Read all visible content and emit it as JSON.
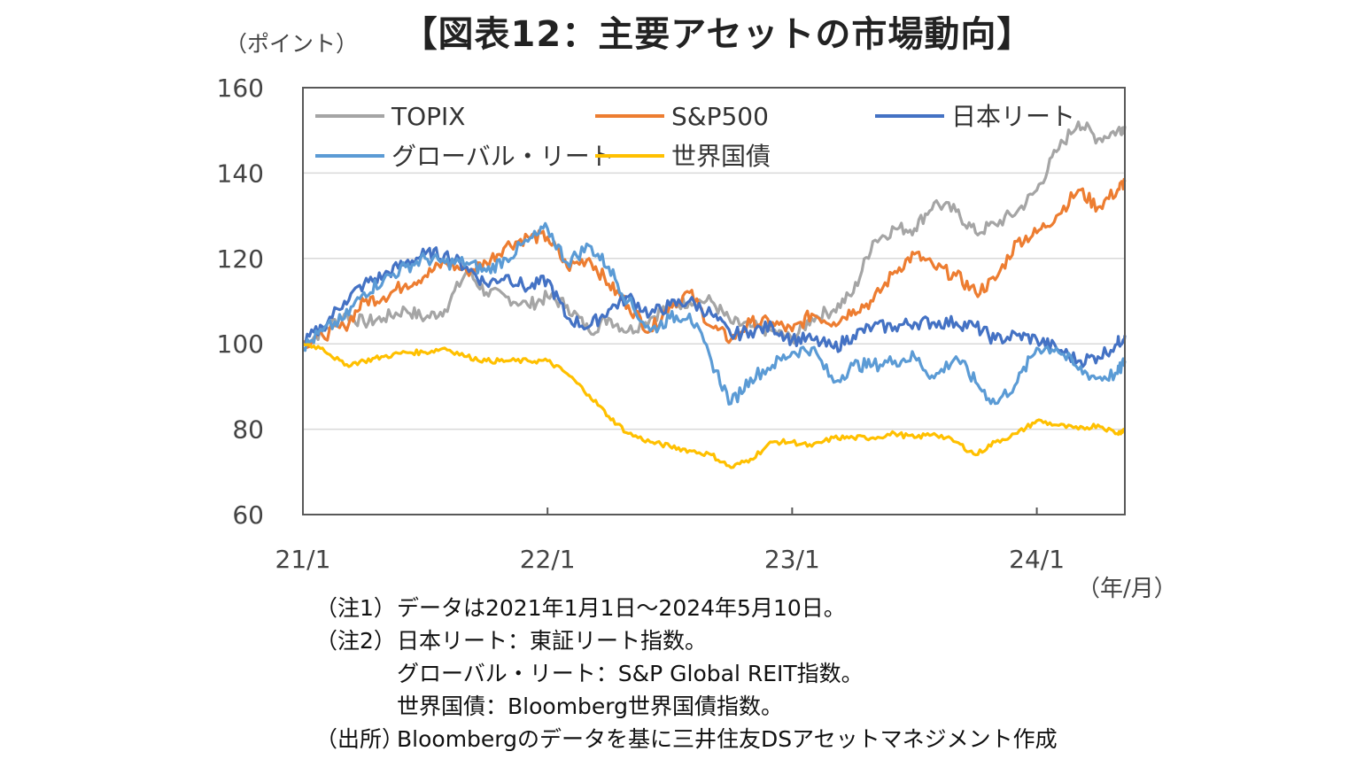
{
  "title": "【図表12：主要アセットの市場動向】",
  "y_unit": "（ポイント）",
  "x_unit": "（年/月）",
  "notes": [
    {
      "label": "（注1）",
      "text": "データは2021年1月1日～2024年5月10日。"
    },
    {
      "label": "（注2）",
      "text": "日本リート：東証リート指数。"
    },
    {
      "label": "",
      "text": "グローバル・リート：S&P Global REIT指数。"
    },
    {
      "label": "",
      "text": "世界国債：Bloomberg世界国債指数。"
    },
    {
      "label": "（出所）",
      "text": "Bloombergのデータを基に三井住友DSアセットマネジメント作成"
    }
  ],
  "chart_data": {
    "type": "line",
    "ylim": [
      60,
      160
    ],
    "yticks": [
      60,
      80,
      100,
      120,
      140,
      160
    ],
    "xlim": [
      2021.0,
      2024.36
    ],
    "xticks": [
      {
        "value": 2021.0,
        "label": "21/1"
      },
      {
        "value": 2022.0,
        "label": "22/1"
      },
      {
        "value": 2023.0,
        "label": "23/1"
      },
      {
        "value": 2024.0,
        "label": "24/1"
      }
    ],
    "grid": true,
    "legend_position": "top-left inside",
    "series": [
      {
        "name": "TOPIX",
        "color": "#a5a5a5",
        "x": [
          2021.0,
          2021.08,
          2021.17,
          2021.25,
          2021.33,
          2021.42,
          2021.5,
          2021.58,
          2021.67,
          2021.75,
          2021.83,
          2021.92,
          2022.0,
          2022.08,
          2022.17,
          2022.25,
          2022.33,
          2022.42,
          2022.5,
          2022.58,
          2022.67,
          2022.75,
          2022.83,
          2022.92,
          2023.0,
          2023.08,
          2023.17,
          2023.25,
          2023.33,
          2023.42,
          2023.5,
          2023.58,
          2023.67,
          2023.75,
          2023.83,
          2023.92,
          2024.0,
          2024.08,
          2024.17,
          2024.25,
          2024.33,
          2024.36
        ],
        "values": [
          100,
          103,
          107,
          105,
          106,
          108,
          106,
          108,
          117,
          112,
          111,
          109,
          111,
          109,
          103,
          106,
          103,
          106,
          109,
          110,
          110,
          105,
          104,
          103,
          101,
          106,
          108,
          112,
          124,
          127,
          127,
          133,
          131,
          126,
          128,
          131,
          136,
          145,
          152,
          148,
          150,
          151
        ]
      },
      {
        "name": "S&P500",
        "color": "#ed7d31",
        "x": [
          2021.0,
          2021.08,
          2021.17,
          2021.25,
          2021.33,
          2021.42,
          2021.5,
          2021.58,
          2021.67,
          2021.75,
          2021.83,
          2021.92,
          2022.0,
          2022.08,
          2022.17,
          2022.25,
          2022.33,
          2022.42,
          2022.5,
          2022.58,
          2022.67,
          2022.75,
          2022.83,
          2022.92,
          2023.0,
          2023.08,
          2023.17,
          2023.25,
          2023.33,
          2023.42,
          2023.5,
          2023.58,
          2023.67,
          2023.75,
          2023.83,
          2023.92,
          2024.0,
          2024.08,
          2024.17,
          2024.25,
          2024.33,
          2024.36
        ],
        "values": [
          100,
          102,
          104,
          110,
          111,
          114,
          116,
          119,
          117,
          119,
          123,
          125,
          125,
          118,
          120,
          114,
          109,
          103,
          109,
          112,
          104,
          101,
          105,
          105,
          103,
          107,
          105,
          108,
          110,
          117,
          121,
          118,
          116,
          112,
          115,
          124,
          126,
          130,
          136,
          132,
          136,
          138
        ]
      },
      {
        "name": "日本リート",
        "color": "#4472c4",
        "x": [
          2021.0,
          2021.08,
          2021.17,
          2021.25,
          2021.33,
          2021.42,
          2021.5,
          2021.58,
          2021.67,
          2021.75,
          2021.83,
          2021.92,
          2022.0,
          2022.08,
          2022.17,
          2022.25,
          2022.33,
          2022.42,
          2022.5,
          2022.58,
          2022.67,
          2022.75,
          2022.83,
          2022.92,
          2023.0,
          2023.08,
          2023.17,
          2023.25,
          2023.33,
          2023.42,
          2023.5,
          2023.58,
          2023.67,
          2023.75,
          2023.83,
          2023.92,
          2024.0,
          2024.08,
          2024.17,
          2024.25,
          2024.33,
          2024.36
        ],
        "values": [
          100,
          104,
          110,
          114,
          116,
          119,
          121,
          121,
          118,
          114,
          116,
          113,
          115,
          106,
          104,
          108,
          111,
          107,
          109,
          110,
          107,
          102,
          103,
          104,
          101,
          101,
          99,
          102,
          104,
          104,
          105,
          105,
          105,
          104,
          101,
          102,
          101,
          99,
          96,
          97,
          100,
          102
        ]
      },
      {
        "name": "グローバル・リート",
        "color": "#5b9bd5",
        "x": [
          2021.0,
          2021.08,
          2021.17,
          2021.25,
          2021.33,
          2021.42,
          2021.5,
          2021.58,
          2021.67,
          2021.75,
          2021.83,
          2021.92,
          2022.0,
          2022.08,
          2022.17,
          2022.25,
          2022.33,
          2022.42,
          2022.5,
          2022.58,
          2022.67,
          2022.75,
          2022.83,
          2022.92,
          2023.0,
          2023.08,
          2023.17,
          2023.25,
          2023.33,
          2023.42,
          2023.5,
          2023.58,
          2023.67,
          2023.75,
          2023.83,
          2023.92,
          2024.0,
          2024.08,
          2024.17,
          2024.25,
          2024.33,
          2024.36
        ],
        "values": [
          99,
          103,
          106,
          112,
          115,
          118,
          120,
          119,
          119,
          117,
          120,
          124,
          127,
          119,
          123,
          118,
          110,
          103,
          106,
          107,
          96,
          86,
          92,
          95,
          98,
          99,
          91,
          95,
          95,
          96,
          97,
          92,
          97,
          91,
          86,
          91,
          99,
          99,
          94,
          92,
          93,
          96
        ]
      },
      {
        "name": "世界国債",
        "color": "#ffc000",
        "x": [
          2021.0,
          2021.08,
          2021.17,
          2021.25,
          2021.33,
          2021.42,
          2021.5,
          2021.58,
          2021.67,
          2021.75,
          2021.83,
          2021.92,
          2022.0,
          2022.08,
          2022.17,
          2022.25,
          2022.33,
          2022.42,
          2022.5,
          2022.58,
          2022.67,
          2022.75,
          2022.83,
          2022.92,
          2023.0,
          2023.08,
          2023.17,
          2023.25,
          2023.33,
          2023.42,
          2023.5,
          2023.58,
          2023.67,
          2023.75,
          2023.83,
          2023.92,
          2024.0,
          2024.08,
          2024.17,
          2024.25,
          2024.33,
          2024.36
        ],
        "values": [
          100,
          99,
          95,
          96,
          97,
          98,
          98,
          99,
          97,
          96,
          96,
          96,
          96,
          93,
          88,
          83,
          79,
          77,
          76,
          75,
          74,
          71,
          73,
          77,
          77,
          76,
          78,
          78,
          78,
          79,
          78,
          79,
          77,
          74,
          77,
          79,
          82,
          81,
          80,
          81,
          79,
          80
        ]
      }
    ]
  }
}
